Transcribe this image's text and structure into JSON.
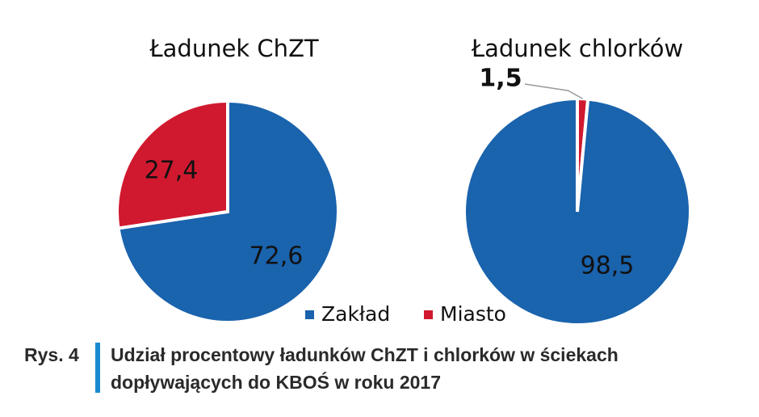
{
  "chart_data": [
    {
      "type": "pie",
      "title": "Ładunek ChZT",
      "categories": [
        "Zakład",
        "Miasto"
      ],
      "values": [
        72.6,
        27.4
      ],
      "value_labels": [
        "72,6",
        "27,4"
      ],
      "colors": [
        "#1a63ad",
        "#d0192f"
      ]
    },
    {
      "type": "pie",
      "title": "Ładunek chlorków",
      "categories": [
        "Zakład",
        "Miasto"
      ],
      "values": [
        98.5,
        1.5
      ],
      "value_labels": [
        "98,5",
        "1,5"
      ],
      "colors": [
        "#1a63ad",
        "#d0192f"
      ]
    }
  ],
  "caption": {
    "label": "Rys. 4",
    "lines": [
      "Udział procentowy ładunków ChZT i chlorków w ściekach",
      "dopływających do KBOŚ w roku 2017"
    ]
  }
}
